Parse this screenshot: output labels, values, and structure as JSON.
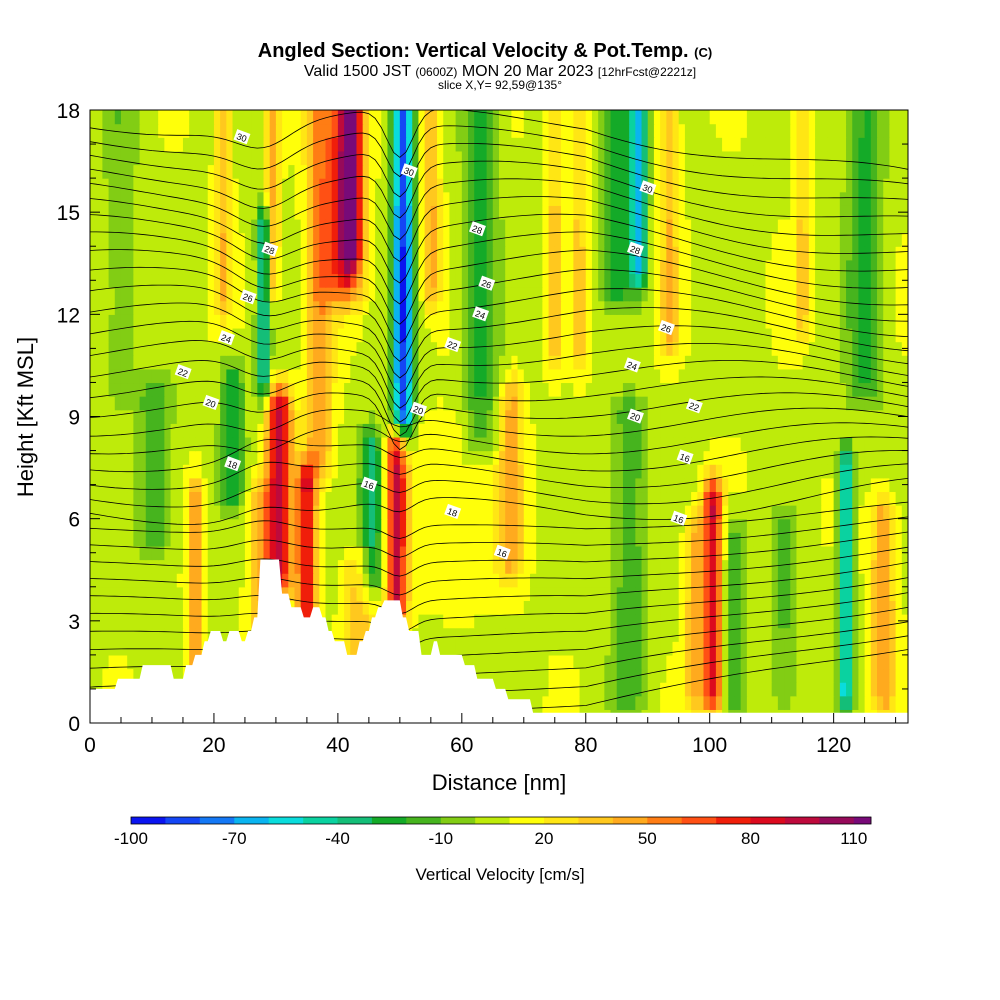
{
  "header": {
    "title_main": "Angled Section: Vertical Velocity & Pot.Temp.",
    "title_mark": "(C)",
    "valid_a": "Valid 1500 JST",
    "valid_b": "(0600Z)",
    "valid_c": "MON 20 Mar 2023",
    "valid_d": "[12hrFcst@2221z]",
    "slice": "slice X,Y= 92,59@135°"
  },
  "colorbar": {
    "label": "Vertical Velocity [cm/s]",
    "tick_labels": [
      "-100",
      "-70",
      "-40",
      "-10",
      "20",
      "50",
      "80",
      "110"
    ],
    "tick_values": [
      -100,
      -70,
      -40,
      -10,
      20,
      50,
      80,
      110
    ],
    "range": [
      -100,
      115
    ],
    "step": 10,
    "colors": [
      "#0a14f0",
      "#1446f5",
      "#1478f5",
      "#0ab4f0",
      "#0adcdc",
      "#0ad2a0",
      "#14be78",
      "#14aa28",
      "#46b41e",
      "#82cd14",
      "#beeb0a",
      "#ffff0a",
      "#ffe614",
      "#ffc81e",
      "#ffaa1e",
      "#ff7d14",
      "#ff5014",
      "#f01e0a",
      "#dc0a1e",
      "#be0a3c",
      "#960a5a",
      "#780a78"
    ]
  },
  "chart_data": {
    "type": "heatmap",
    "xlabel": "Distance [nm]",
    "ylabel": "Height [Kft MSL]",
    "xlim": [
      0,
      132
    ],
    "ylim": [
      0,
      18
    ],
    "x_ticks": [
      0,
      20,
      40,
      60,
      80,
      100,
      120
    ],
    "y_ticks": [
      0,
      3,
      6,
      9,
      12,
      15,
      18
    ],
    "terrain_kft": [
      [
        0,
        1.0
      ],
      [
        4,
        1.0
      ],
      [
        4.5,
        1.3
      ],
      [
        8,
        1.3
      ],
      [
        8.5,
        1.7
      ],
      [
        13,
        1.7
      ],
      [
        13.5,
        1.3
      ],
      [
        15,
        1.3
      ],
      [
        15.5,
        1.7
      ],
      [
        16.5,
        1.7
      ],
      [
        17,
        2.0
      ],
      [
        18,
        2.0
      ],
      [
        18.5,
        2.4
      ],
      [
        19,
        2.4
      ],
      [
        19.5,
        2.7
      ],
      [
        21,
        2.7
      ],
      [
        21.5,
        2.4
      ],
      [
        22,
        2.4
      ],
      [
        22.5,
        2.7
      ],
      [
        24,
        2.7
      ],
      [
        24.5,
        2.4
      ],
      [
        25,
        2.4
      ],
      [
        25.5,
        2.7
      ],
      [
        26,
        2.7
      ],
      [
        26.5,
        3.1
      ],
      [
        27,
        3.1
      ],
      [
        27.5,
        4.8
      ],
      [
        30.5,
        4.8
      ],
      [
        31,
        3.8
      ],
      [
        32,
        3.8
      ],
      [
        32.5,
        3.4
      ],
      [
        34,
        3.4
      ],
      [
        34.5,
        3.1
      ],
      [
        35.5,
        3.1
      ],
      [
        36,
        3.4
      ],
      [
        37,
        3.4
      ],
      [
        37.5,
        3.1
      ],
      [
        38,
        3.1
      ],
      [
        38.5,
        2.7
      ],
      [
        39,
        2.7
      ],
      [
        39.5,
        2.4
      ],
      [
        41,
        2.4
      ],
      [
        41.5,
        2.0
      ],
      [
        43,
        2.0
      ],
      [
        43.5,
        2.4
      ],
      [
        44,
        2.4
      ],
      [
        44.5,
        2.7
      ],
      [
        45,
        2.7
      ],
      [
        45.5,
        3.1
      ],
      [
        46,
        3.1
      ],
      [
        46.5,
        3.4
      ],
      [
        47,
        3.4
      ],
      [
        47.5,
        3.6
      ],
      [
        50,
        3.6
      ],
      [
        50.5,
        3.1
      ],
      [
        51,
        3.1
      ],
      [
        51.5,
        2.7
      ],
      [
        53,
        2.7
      ],
      [
        53.5,
        2.0
      ],
      [
        55,
        2.0
      ],
      [
        55.5,
        2.4
      ],
      [
        56,
        2.4
      ],
      [
        56.5,
        2.0
      ],
      [
        60,
        2.0
      ],
      [
        60.5,
        1.7
      ],
      [
        62,
        1.7
      ],
      [
        62.5,
        1.3
      ],
      [
        65,
        1.3
      ],
      [
        65.5,
        1.0
      ],
      [
        67,
        1.0
      ],
      [
        67.5,
        0.7
      ],
      [
        71,
        0.7
      ],
      [
        71.5,
        0.3
      ],
      [
        132,
        0.3
      ]
    ],
    "vertical_velocity_features": [
      {
        "x": 17.0,
        "half_width": 1.2,
        "y_top": 6.5,
        "y_bot": 0.5,
        "w": 40
      },
      {
        "x": 21.5,
        "half_width": 1.3,
        "y_top": 18,
        "y_bot": 12.5,
        "w": 30
      },
      {
        "x": 29.5,
        "half_width": 1.1,
        "y_top": 18,
        "y_bot": 13,
        "w": 35
      },
      {
        "x": 30.5,
        "half_width": 2.0,
        "y_top": 9.2,
        "y_bot": 4.5,
        "w": 85
      },
      {
        "x": 35.0,
        "half_width": 1.6,
        "y_top": 7.0,
        "y_bot": 3.0,
        "w": 75
      },
      {
        "x": 37.0,
        "half_width": 2.2,
        "y_top": 18,
        "y_bot": 8.0,
        "w": 40
      },
      {
        "x": 41.0,
        "half_width": 3.0,
        "y_top": 18,
        "y_bot": 13.0,
        "w": 55
      },
      {
        "x": 42.0,
        "half_width": 1.8,
        "y_top": 18,
        "y_bot": 14.0,
        "w": 75
      },
      {
        "x": 50.5,
        "half_width": 1.7,
        "y_top": 18,
        "y_bot": 9.0,
        "w": -95
      },
      {
        "x": 49.5,
        "half_width": 1.7,
        "y_top": 8.0,
        "y_bot": 3.5,
        "w": 80
      },
      {
        "x": 45.5,
        "half_width": 2.0,
        "y_top": 8.0,
        "y_bot": 4.5,
        "w": -45
      },
      {
        "x": 28.0,
        "half_width": 1.1,
        "y_top": 14.5,
        "y_bot": 10.0,
        "w": -55
      },
      {
        "x": 23.0,
        "half_width": 2.0,
        "y_top": 10.0,
        "y_bot": 7.0,
        "w": -35
      },
      {
        "x": 10.5,
        "half_width": 3.0,
        "y_top": 9.5,
        "y_bot": 5.5,
        "w": -25
      },
      {
        "x": 27.5,
        "half_width": 2.0,
        "y_top": 6.5,
        "y_bot": 3.0,
        "w": 30
      },
      {
        "x": 43.5,
        "half_width": 2.5,
        "y_top": 4.5,
        "y_bot": 2.0,
        "w": 30
      },
      {
        "x": 55.0,
        "half_width": 1.5,
        "y_top": 18,
        "y_bot": 13.0,
        "w": 35
      },
      {
        "x": 63.0,
        "half_width": 2.8,
        "y_top": 18,
        "y_bot": 8.5,
        "w": -30
      },
      {
        "x": 68.0,
        "half_width": 1.8,
        "y_top": 9.5,
        "y_bot": 5.0,
        "w": 35
      },
      {
        "x": 75.0,
        "half_width": 1.2,
        "y_top": 18,
        "y_bot": 11.0,
        "w": 25
      },
      {
        "x": 79.0,
        "half_width": 1.2,
        "y_top": 18,
        "y_bot": 11.0,
        "w": 25
      },
      {
        "x": 85.0,
        "half_width": 2.5,
        "y_top": 18,
        "y_bot": 13.0,
        "w": -35
      },
      {
        "x": 88.5,
        "half_width": 1.4,
        "y_top": 18,
        "y_bot": 13.5,
        "w": -65
      },
      {
        "x": 93.5,
        "half_width": 1.5,
        "y_top": 18,
        "y_bot": 11.5,
        "w": 30
      },
      {
        "x": 100.5,
        "half_width": 1.5,
        "y_top": 6.5,
        "y_bot": 1.0,
        "w": 80
      },
      {
        "x": 97.5,
        "half_width": 1.5,
        "y_top": 5.5,
        "y_bot": 1.0,
        "w": 35
      },
      {
        "x": 104.0,
        "half_width": 2.0,
        "y_top": 5.5,
        "y_bot": 1.0,
        "w": -25
      },
      {
        "x": 112.0,
        "half_width": 2.0,
        "y_top": 5.5,
        "y_bot": 1.0,
        "w": -20
      },
      {
        "x": 115.0,
        "half_width": 1.2,
        "y_top": 18,
        "y_bot": 12.0,
        "w": 25
      },
      {
        "x": 122.0,
        "half_width": 1.2,
        "y_top": 7.5,
        "y_bot": 1.0,
        "w": -65
      },
      {
        "x": 128.0,
        "half_width": 2.0,
        "y_top": 6.0,
        "y_bot": 1.0,
        "w": 40
      },
      {
        "x": 125.0,
        "half_width": 3.0,
        "y_top": 18,
        "y_bot": 10.0,
        "w": -30
      },
      {
        "x": 60.0,
        "half_width": 8.0,
        "y_top": 8.5,
        "y_bot": 4.0,
        "w": 10
      },
      {
        "x": 87.0,
        "half_width": 3.0,
        "y_top": 9.0,
        "y_bot": 1.0,
        "w": -25
      },
      {
        "x": 5.0,
        "half_width": 3.0,
        "y_top": 18,
        "y_bot": 10.0,
        "w": -15
      }
    ],
    "theta_contour_labels": [
      {
        "text": "30",
        "x": 24.5,
        "y": 17.2
      },
      {
        "text": "30",
        "x": 51.5,
        "y": 16.2
      },
      {
        "text": "30",
        "x": 90.0,
        "y": 15.7
      },
      {
        "text": "28",
        "x": 29.0,
        "y": 13.9
      },
      {
        "text": "28",
        "x": 62.5,
        "y": 14.5
      },
      {
        "text": "28",
        "x": 88.0,
        "y": 13.9
      },
      {
        "text": "26",
        "x": 25.5,
        "y": 12.5
      },
      {
        "text": "26",
        "x": 64.0,
        "y": 12.9
      },
      {
        "text": "26",
        "x": 93.0,
        "y": 11.6
      },
      {
        "text": "24",
        "x": 22.0,
        "y": 11.3
      },
      {
        "text": "24",
        "x": 63.0,
        "y": 12.0
      },
      {
        "text": "24",
        "x": 87.5,
        "y": 10.5
      },
      {
        "text": "22",
        "x": 15.0,
        "y": 10.3
      },
      {
        "text": "22",
        "x": 58.5,
        "y": 11.1
      },
      {
        "text": "22",
        "x": 97.5,
        "y": 9.3
      },
      {
        "text": "20",
        "x": 19.5,
        "y": 9.4
      },
      {
        "text": "20",
        "x": 53.0,
        "y": 9.2
      },
      {
        "text": "20",
        "x": 88.0,
        "y": 9.0
      },
      {
        "text": "18",
        "x": 23.0,
        "y": 7.6
      },
      {
        "text": "18",
        "x": 58.5,
        "y": 6.2
      },
      {
        "text": "16",
        "x": 45.0,
        "y": 7.0
      },
      {
        "text": "16",
        "x": 66.5,
        "y": 5.0
      },
      {
        "text": "16",
        "x": 96.0,
        "y": 7.8
      },
      {
        "text": "16",
        "x": 95.0,
        "y": 6.0
      }
    ]
  }
}
